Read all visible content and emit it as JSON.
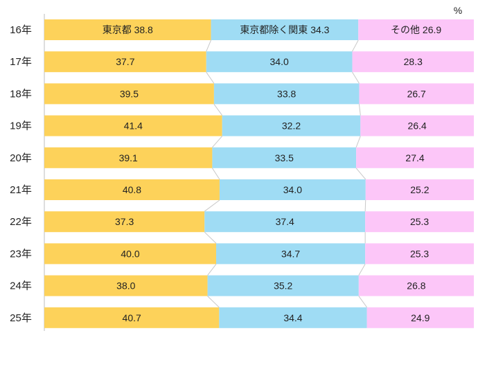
{
  "chart_data": {
    "type": "bar",
    "stacked": true,
    "percent_stacked": true,
    "orientation": "horizontal",
    "unit": "%",
    "categories": [
      "16年",
      "17年",
      "18年",
      "19年",
      "20年",
      "21年",
      "22年",
      "23年",
      "24年",
      "25年"
    ],
    "series": [
      {
        "name": "東京都",
        "color": "#FDD25A",
        "values": [
          38.8,
          37.7,
          39.5,
          41.4,
          39.1,
          40.8,
          37.3,
          40.0,
          38.0,
          40.7
        ]
      },
      {
        "name": "東京都除く関東",
        "color": "#9FDCF4",
        "values": [
          34.3,
          34.0,
          33.8,
          32.2,
          33.5,
          34.0,
          37.4,
          34.7,
          35.2,
          34.4
        ]
      },
      {
        "name": "その他",
        "color": "#FCC6F8",
        "values": [
          26.9,
          28.3,
          26.7,
          26.4,
          27.4,
          25.2,
          25.3,
          25.3,
          26.8,
          24.9
        ]
      }
    ],
    "value_labels": [
      [
        "東京都 38.8",
        "東京都除く関東 34.3",
        "その他 26.9"
      ],
      [
        "37.7",
        "34.0",
        "28.3"
      ],
      [
        "39.5",
        "33.8",
        "26.7"
      ],
      [
        "41.4",
        "32.2",
        "26.4"
      ],
      [
        "39.1",
        "33.5",
        "27.4"
      ],
      [
        "40.8",
        "34.0",
        "25.2"
      ],
      [
        "37.3",
        "37.4",
        "25.3"
      ],
      [
        "40.0",
        "34.7",
        "25.3"
      ],
      [
        "38.0",
        "35.2",
        "26.8"
      ],
      [
        "40.7",
        "34.4",
        "24.9"
      ]
    ],
    "series_lines": true,
    "grid": false,
    "legend": "none"
  }
}
